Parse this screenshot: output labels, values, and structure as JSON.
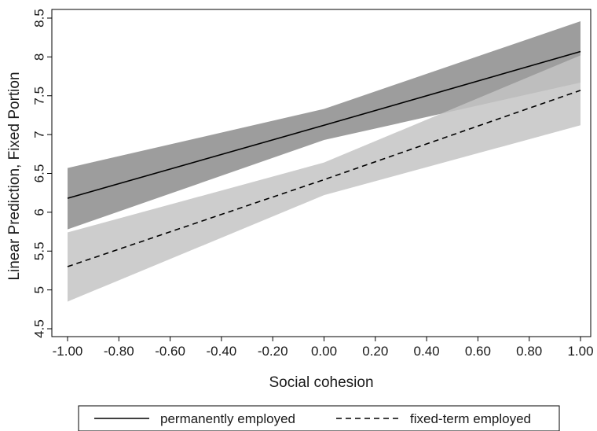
{
  "chart_data": {
    "type": "line",
    "title": "",
    "xlabel": "Social cohesion",
    "ylabel": "Linear Prediction, Fixed Portion",
    "xlim": [
      -1.0,
      1.0
    ],
    "ylim": [
      4.5,
      8.5
    ],
    "x_ticks": [
      -1.0,
      -0.8,
      -0.6,
      -0.4,
      -0.2,
      0.0,
      0.2,
      0.4,
      0.6,
      0.8,
      1.0
    ],
    "x_tick_labels": [
      "-1.00",
      "-0.80",
      "-0.60",
      "-0.40",
      "-0.20",
      "0.00",
      "0.20",
      "0.40",
      "0.60",
      "0.80",
      "1.00"
    ],
    "y_ticks": [
      4.5,
      5,
      5.5,
      6,
      6.5,
      7,
      7.5,
      8,
      8.5
    ],
    "y_tick_labels": [
      "4.5",
      "5",
      "5.5",
      "6",
      "6.5",
      "7",
      "7.5",
      "8",
      "8.5"
    ],
    "grid": false,
    "legend_position": "bottom",
    "x": [
      -1.0,
      0.0,
      1.0
    ],
    "series": [
      {
        "name": "permanently employed",
        "line_style": "solid",
        "line_color": "#000000",
        "band_color": "#8c8c8c",
        "values": [
          6.18,
          7.12,
          8.07
        ],
        "ci_lower": [
          5.78,
          6.93,
          7.67
        ],
        "ci_upper": [
          6.57,
          7.33,
          8.46
        ]
      },
      {
        "name": "fixed-term employed",
        "line_style": "dashed",
        "line_color": "#000000",
        "band_color": "#c4c4c4",
        "values": [
          5.3,
          6.42,
          7.57
        ],
        "ci_lower": [
          4.85,
          6.22,
          7.12
        ],
        "ci_upper": [
          5.74,
          6.64,
          8.02
        ]
      }
    ]
  }
}
